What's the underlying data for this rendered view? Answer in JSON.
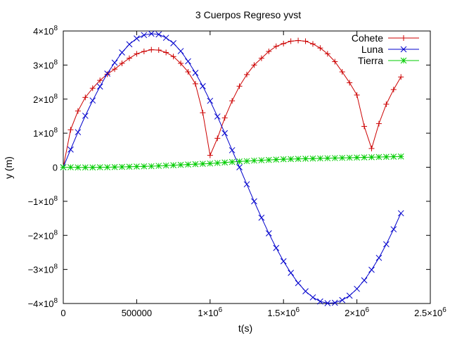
{
  "chart_data": {
    "type": "line",
    "title": "3 Cuerpos Regreso yvst",
    "xlabel": "t(s)",
    "ylabel": "y (m)",
    "xlim": [
      0,
      2500000
    ],
    "ylim": [
      -400000000,
      400000000
    ],
    "x_ticks": [
      {
        "value": 0,
        "label": "0",
        "exp": ""
      },
      {
        "value": 500000,
        "label": "500000",
        "exp": ""
      },
      {
        "value": 1000000,
        "label": "1×10",
        "exp": "6"
      },
      {
        "value": 1500000,
        "label": "1.5×10",
        "exp": "6"
      },
      {
        "value": 2000000,
        "label": "2×10",
        "exp": "6"
      },
      {
        "value": 2500000,
        "label": "2.5×10",
        "exp": "6"
      }
    ],
    "y_ticks": [
      {
        "value": 400000000,
        "label": "4×10",
        "exp": "8"
      },
      {
        "value": 300000000,
        "label": "3×10",
        "exp": "8"
      },
      {
        "value": 200000000,
        "label": "2×10",
        "exp": "8"
      },
      {
        "value": 100000000,
        "label": "1×10",
        "exp": "8"
      },
      {
        "value": 0,
        "label": "0",
        "exp": ""
      },
      {
        "value": -100000000,
        "label": "−1×10",
        "exp": "8"
      },
      {
        "value": -200000000,
        "label": "−2×10",
        "exp": "8"
      },
      {
        "value": -300000000,
        "label": "−3×10",
        "exp": "8"
      },
      {
        "value": -400000000,
        "label": "−4×10",
        "exp": "8"
      }
    ],
    "grid": false,
    "legend_position": "top-right",
    "series": [
      {
        "name": "Cohete",
        "color": "#cc0000",
        "marker": "plus",
        "x": [
          0,
          50000,
          100000,
          150000,
          200000,
          250000,
          300000,
          350000,
          400000,
          450000,
          500000,
          550000,
          600000,
          650000,
          700000,
          750000,
          800000,
          850000,
          900000,
          950000,
          1000000,
          1050000,
          1100000,
          1150000,
          1200000,
          1250000,
          1300000,
          1350000,
          1400000,
          1450000,
          1500000,
          1550000,
          1600000,
          1650000,
          1700000,
          1750000,
          1800000,
          1850000,
          1900000,
          1950000,
          2000000,
          2050000,
          2100000,
          2150000,
          2200000,
          2250000,
          2300000
        ],
        "y": [
          0,
          110000000,
          165000000,
          205000000,
          232000000,
          255000000,
          273000000,
          288000000,
          305000000,
          320000000,
          333000000,
          340000000,
          345000000,
          344000000,
          337000000,
          325000000,
          305000000,
          280000000,
          245000000,
          160000000,
          35000000,
          85000000,
          145000000,
          195000000,
          238000000,
          272000000,
          300000000,
          320000000,
          340000000,
          355000000,
          363000000,
          370000000,
          372000000,
          370000000,
          362000000,
          350000000,
          333000000,
          310000000,
          280000000,
          248000000,
          212000000,
          120000000,
          55000000,
          128000000,
          185000000,
          228000000,
          265000000
        ]
      },
      {
        "name": "Luna",
        "color": "#0000cc",
        "marker": "cross",
        "x": [
          0,
          50000,
          100000,
          150000,
          200000,
          250000,
          300000,
          350000,
          400000,
          450000,
          500000,
          550000,
          600000,
          650000,
          700000,
          750000,
          800000,
          850000,
          900000,
          950000,
          1000000,
          1050000,
          1100000,
          1150000,
          1200000,
          1250000,
          1300000,
          1350000,
          1400000,
          1450000,
          1500000,
          1550000,
          1600000,
          1650000,
          1700000,
          1750000,
          1800000,
          1850000,
          1900000,
          1950000,
          2000000,
          2050000,
          2100000,
          2150000,
          2200000,
          2250000,
          2300000
        ],
        "y": [
          0,
          52000000,
          103000000,
          151000000,
          196000000,
          237000000,
          275000000,
          307000000,
          337000000,
          361000000,
          378000000,
          388000000,
          392000000,
          390000000,
          380000000,
          364000000,
          341000000,
          311000000,
          277000000,
          238000000,
          195000000,
          149000000,
          100000000,
          50000000,
          0,
          -50000000,
          -100000000,
          -148000000,
          -194000000,
          -237000000,
          -276000000,
          -310000000,
          -340000000,
          -364000000,
          -382000000,
          -394000000,
          -399000000,
          -398000000,
          -390000000,
          -377000000,
          -357000000,
          -332000000,
          -301000000,
          -266000000,
          -226000000,
          -182000000,
          -135000000
        ]
      },
      {
        "name": "Tierra",
        "color": "#00cc00",
        "marker": "star",
        "x": [
          0,
          50000,
          100000,
          150000,
          200000,
          250000,
          300000,
          350000,
          400000,
          450000,
          500000,
          550000,
          600000,
          650000,
          700000,
          750000,
          800000,
          850000,
          900000,
          950000,
          1000000,
          1050000,
          1100000,
          1150000,
          1200000,
          1250000,
          1300000,
          1350000,
          1400000,
          1450000,
          1500000,
          1550000,
          1600000,
          1650000,
          1700000,
          1750000,
          1800000,
          1850000,
          1900000,
          1950000,
          2000000,
          2050000,
          2100000,
          2150000,
          2200000,
          2250000,
          2300000
        ],
        "y": [
          0,
          0,
          -500000,
          -500000,
          -500000,
          0,
          0,
          500000,
          1000000,
          1500000,
          2000000,
          2500000,
          3000000,
          4000000,
          5000000,
          6000000,
          7000000,
          8000000,
          9000000,
          10000000,
          11000000,
          12500000,
          14000000,
          15500000,
          17000000,
          18000000,
          19500000,
          20500000,
          21500000,
          22500000,
          23500000,
          24000000,
          24500000,
          25000000,
          25500000,
          26000000,
          26500000,
          27000000,
          27500000,
          28000000,
          28500000,
          29000000,
          29500000,
          30000000,
          30500000,
          31000000,
          31500000
        ]
      }
    ]
  }
}
